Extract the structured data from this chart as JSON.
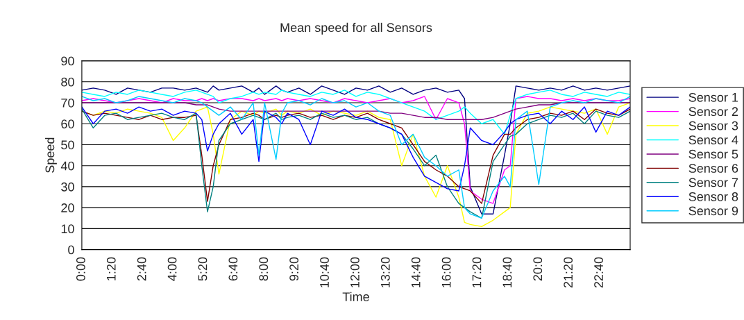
{
  "chart_data": {
    "type": "line",
    "title": "Mean speed for all Sensors",
    "xlabel": "Time",
    "ylabel": "Speed",
    "x": [
      0,
      0.5,
      1,
      1.5,
      2,
      2.5,
      3,
      3.5,
      4,
      4.5,
      5,
      5.25,
      5.5,
      5.75,
      6,
      6.5,
      7,
      7.5,
      7.75,
      8,
      8.5,
      8.75,
      9,
      9.5,
      10,
      10.5,
      11,
      11.5,
      12,
      12.5,
      13,
      13.5,
      14,
      14.5,
      15,
      15.5,
      16,
      16.5,
      16.75,
      17,
      17.5,
      18,
      18.5,
      18.75,
      19,
      19.5,
      20,
      20.5,
      21,
      21.5,
      22,
      22.5,
      23,
      23.5,
      24
    ],
    "series": [
      {
        "name": "Sensor 1",
        "color": "#000080",
        "values": [
          76,
          77,
          76,
          74,
          77,
          76,
          75,
          77,
          77,
          76,
          77,
          76,
          75,
          78,
          76,
          77,
          78,
          75,
          77,
          74,
          78,
          76,
          75,
          77,
          74,
          78,
          76,
          74,
          77,
          76,
          78,
          75,
          77,
          74,
          76,
          77,
          75,
          76,
          72,
          30,
          17,
          17,
          45,
          60,
          78,
          77,
          76,
          77,
          76,
          78,
          76,
          77,
          76,
          77,
          78
        ]
      },
      {
        "name": "Sensor 2",
        "color": "#ff00ff",
        "values": [
          71,
          72,
          71,
          70,
          71,
          72,
          71,
          70,
          72,
          71,
          71,
          72,
          71,
          72,
          71,
          72,
          72,
          71,
          72,
          71,
          72,
          71,
          72,
          71,
          72,
          71,
          70,
          72,
          71,
          70,
          71,
          72,
          70,
          71,
          73,
          62,
          72,
          70,
          60,
          28,
          24,
          22,
          38,
          40,
          72,
          73,
          72,
          72,
          71,
          72,
          71,
          72,
          71,
          71,
          72
        ]
      },
      {
        "name": "Sensor 3",
        "color": "#ffff00",
        "values": [
          66,
          64,
          66,
          65,
          67,
          66,
          65,
          63,
          52,
          58,
          66,
          67,
          68,
          55,
          36,
          62,
          66,
          64,
          66,
          65,
          67,
          64,
          66,
          65,
          67,
          64,
          66,
          65,
          64,
          66,
          63,
          62,
          40,
          55,
          35,
          25,
          40,
          25,
          13,
          12,
          11,
          14,
          18,
          20,
          55,
          65,
          66,
          68,
          67,
          66,
          65,
          67,
          55,
          68,
          70
        ]
      },
      {
        "name": "Sensor 4",
        "color": "#00ffff",
        "values": [
          75,
          74,
          73,
          75,
          74,
          76,
          75,
          74,
          73,
          75,
          76,
          75,
          74,
          73,
          70,
          72,
          73,
          75,
          74,
          75,
          74,
          76,
          75,
          74,
          73,
          75,
          74,
          76,
          73,
          75,
          74,
          72,
          70,
          68,
          66,
          62,
          64,
          66,
          68,
          65,
          60,
          62,
          55,
          64,
          72,
          74,
          75,
          76,
          74,
          73,
          75,
          74,
          73,
          75,
          74
        ]
      },
      {
        "name": "Sensor 5",
        "color": "#800080",
        "values": [
          70,
          70,
          70,
          70,
          70,
          70,
          70,
          70,
          70,
          70,
          69,
          69,
          69,
          68,
          67,
          66,
          66,
          66,
          66,
          66,
          66,
          66,
          66,
          66,
          66,
          66,
          66,
          66,
          66,
          66,
          66,
          65,
          65,
          64,
          63,
          63,
          62,
          62,
          62,
          62,
          62,
          63,
          65,
          66,
          67,
          68,
          69,
          69,
          70,
          70,
          70,
          70,
          70,
          70,
          70
        ]
      },
      {
        "name": "Sensor 6",
        "color": "#800000",
        "values": [
          66,
          64,
          65,
          64,
          63,
          62,
          64,
          62,
          63,
          63,
          64,
          45,
          23,
          40,
          50,
          62,
          63,
          65,
          64,
          62,
          64,
          63,
          64,
          65,
          63,
          64,
          62,
          64,
          63,
          65,
          62,
          60,
          58,
          50,
          42,
          38,
          35,
          30,
          29,
          28,
          22,
          45,
          55,
          55,
          58,
          62,
          63,
          65,
          64,
          66,
          62,
          67,
          65,
          64,
          67
        ]
      },
      {
        "name": "Sensor 7",
        "color": "#008080",
        "values": [
          67,
          58,
          64,
          65,
          62,
          63,
          64,
          65,
          63,
          62,
          65,
          40,
          18,
          30,
          52,
          60,
          62,
          64,
          63,
          62,
          65,
          62,
          63,
          64,
          62,
          65,
          63,
          64,
          62,
          63,
          60,
          58,
          55,
          48,
          40,
          45,
          30,
          22,
          20,
          18,
          15,
          42,
          50,
          54,
          55,
          60,
          62,
          64,
          63,
          65,
          60,
          66,
          64,
          63,
          66
        ]
      },
      {
        "name": "Sensor 8",
        "color": "#0000ff",
        "values": [
          68,
          60,
          66,
          67,
          65,
          68,
          66,
          67,
          64,
          66,
          65,
          62,
          47,
          55,
          60,
          65,
          55,
          62,
          42,
          66,
          63,
          60,
          65,
          62,
          50,
          66,
          64,
          67,
          63,
          62,
          60,
          58,
          55,
          44,
          35,
          32,
          29,
          28,
          40,
          58,
          52,
          50,
          56,
          60,
          62,
          64,
          65,
          60,
          66,
          62,
          68,
          56,
          66,
          64,
          68
        ]
      },
      {
        "name": "Sensor 9",
        "color": "#00ccff",
        "values": [
          73,
          71,
          72,
          70,
          71,
          73,
          72,
          71,
          70,
          72,
          71,
          70,
          68,
          66,
          64,
          68,
          62,
          70,
          45,
          70,
          43,
          65,
          70,
          71,
          69,
          72,
          70,
          71,
          68,
          70,
          66,
          64,
          50,
          55,
          44,
          40,
          35,
          38,
          20,
          17,
          15,
          28,
          35,
          30,
          62,
          66,
          31,
          68,
          70,
          71,
          70,
          72,
          71,
          70,
          73
        ]
      }
    ],
    "xlim": [
      0,
      24
    ],
    "xticks": [
      {
        "value": 0,
        "label": "0:00"
      },
      {
        "value": 1.3333,
        "label": "1:20"
      },
      {
        "value": 2.6667,
        "label": "2:40"
      },
      {
        "value": 4,
        "label": "4:00"
      },
      {
        "value": 5.3333,
        "label": "5:20"
      },
      {
        "value": 6.6667,
        "label": "6:40"
      },
      {
        "value": 8,
        "label": "8:00"
      },
      {
        "value": 9.3333,
        "label": "9:20"
      },
      {
        "value": 10.6667,
        "label": "10:40"
      },
      {
        "value": 12,
        "label": "12:00"
      },
      {
        "value": 13.3333,
        "label": "13:20"
      },
      {
        "value": 14.6667,
        "label": "14:40"
      },
      {
        "value": 16,
        "label": "16:00"
      },
      {
        "value": 17.3333,
        "label": "17:20"
      },
      {
        "value": 18.6667,
        "label": "18:40"
      },
      {
        "value": 20,
        "label": "20:0"
      },
      {
        "value": 21.3333,
        "label": "21:20"
      },
      {
        "value": 22.6667,
        "label": "22:40"
      }
    ],
    "ylim": [
      0,
      90
    ],
    "yticks": [
      0,
      10,
      20,
      30,
      40,
      50,
      60,
      70,
      80,
      90
    ],
    "grid": "y",
    "legend": "right",
    "marker": "none",
    "line_style": "solid"
  }
}
